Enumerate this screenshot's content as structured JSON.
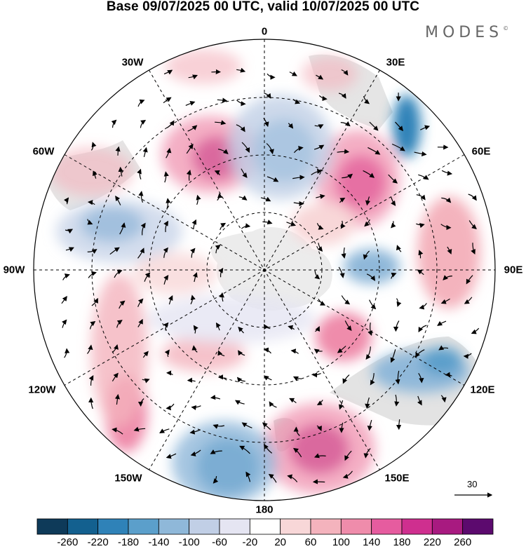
{
  "title": "Base 09/07/2025 00 UTC, valid 10/07/2025 00 UTC",
  "brand": "MODES",
  "brand_mark": "©",
  "longitude_labels": {
    "0": "0",
    "30E": "30E",
    "60E": "60E",
    "90E": "90E",
    "120E": "120E",
    "150E": "150E",
    "180": "180",
    "150W": "150W",
    "120W": "120W",
    "90W": "90W",
    "60W": "60W",
    "30W": "30W"
  },
  "vector_scale_label": "30",
  "colorbar": {
    "tick_labels": [
      "-260",
      "-220",
      "-180",
      "-140",
      "-100",
      "-60",
      "-20",
      "20",
      "60",
      "100",
      "140",
      "180",
      "220",
      "260"
    ],
    "colors": [
      "#0e3a59",
      "#13608f",
      "#2f82b8",
      "#5b9fcb",
      "#8fb8d9",
      "#c1cfe6",
      "#e5e5f2",
      "#ffffff",
      "#f8d7d8",
      "#f4b3bd",
      "#ef8cab",
      "#e65c9f",
      "#cf2f8f",
      "#a81a80",
      "#5c0a6e"
    ]
  },
  "colors": {
    "land": "#d8d8d8",
    "antarctica": "#ececec",
    "grid": "#000000"
  }
}
